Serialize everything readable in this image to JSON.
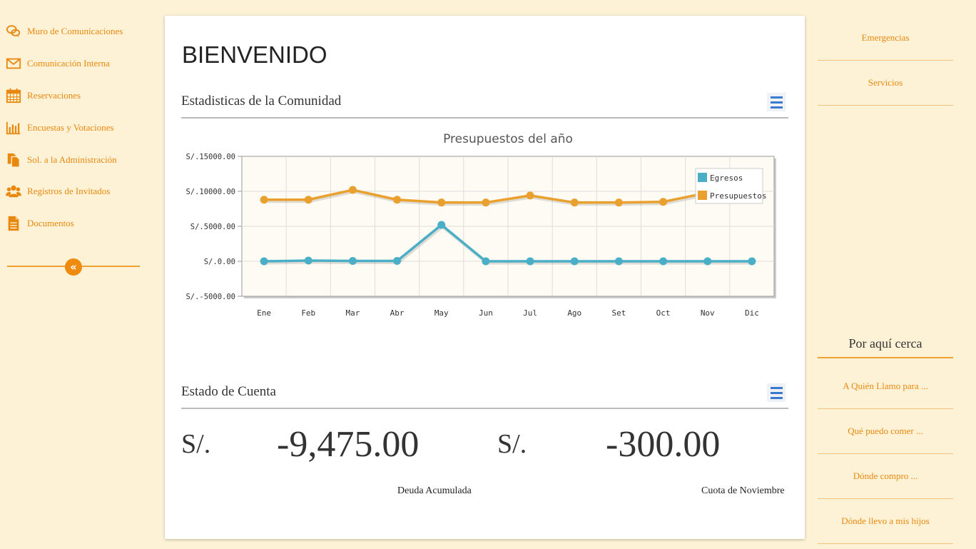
{
  "sidebar": {
    "items": [
      {
        "label": "Muro de Comunicaciones",
        "icon": "chat-bubbles-icon"
      },
      {
        "label": "Comunicación Interna",
        "icon": "envelope-icon"
      },
      {
        "label": "Reservaciones",
        "icon": "calendar-icon"
      },
      {
        "label": "Encuestas y Votaciones",
        "icon": "bar-chart-icon"
      },
      {
        "label": "Sol. a la Administración",
        "icon": "documents-icon"
      },
      {
        "label": "Registros de Invitados",
        "icon": "users-icon"
      },
      {
        "label": "Documentos",
        "icon": "document-icon"
      }
    ],
    "collapse_symbol": "«"
  },
  "main": {
    "title": "BIENVENIDO",
    "stats_title": "Estadisticas de la Comunidad",
    "account_title": "Estado de Cuenta"
  },
  "account": {
    "currency": "S/.",
    "debt_value": "-9,475.00",
    "debt_label": "Deuda Acumulada",
    "fee_value": "-300.00",
    "fee_label": "Cuota de Noviembre"
  },
  "right": {
    "links": [
      "Emergencias",
      "Servicios"
    ],
    "nearby_title": "Por aquí cerca",
    "nearby": [
      "A Quién Llamo para ...",
      "Qué puedo comer ...",
      "Dónde compro ...",
      "Dónde llevo a mis hijos"
    ]
  },
  "colors": {
    "accent": "#e8880e",
    "egresos": "#4aafc6",
    "presupuestos": "#e9a02e"
  },
  "chart_data": {
    "type": "line",
    "title": "Presupuestos del año",
    "categories": [
      "Ene",
      "Feb",
      "Mar",
      "Abr",
      "May",
      "Jun",
      "Jul",
      "Ago",
      "Set",
      "Oct",
      "Nov",
      "Dic"
    ],
    "y_tick_labels": [
      "S/.15000.00",
      "S/.10000.00",
      "S/.5000.00",
      "S/.0.00",
      "S/.-5000.00"
    ],
    "ylim": [
      -5000,
      15000
    ],
    "grid": true,
    "legend": "top-right",
    "series": [
      {
        "name": "Egresos",
        "values": [
          0,
          100,
          50,
          50,
          5200,
          0,
          0,
          0,
          0,
          0,
          0,
          0
        ]
      },
      {
        "name": "Presupuestos",
        "values": [
          8800,
          8800,
          10200,
          8800,
          8400,
          8400,
          9400,
          8400,
          8400,
          8500,
          9800,
          9800
        ]
      }
    ]
  }
}
